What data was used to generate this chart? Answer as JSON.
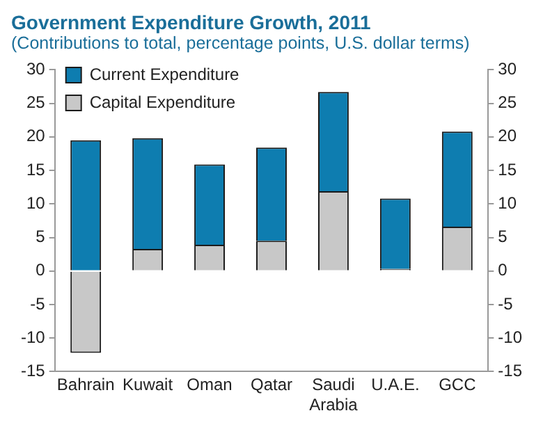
{
  "chart_data": {
    "type": "bar",
    "title": "Government Expenditure Growth, 2011",
    "subtitle": "(Contributions to total, percentage points, U.S. dollar terms)",
    "categories": [
      "Bahrain",
      "Kuwait",
      "Oman",
      "Qatar",
      "Saudi Arabia",
      "U.A.E.",
      "GCC"
    ],
    "stacked": true,
    "series": [
      {
        "name": "Capital Expenditure",
        "color": "#c8c8c8",
        "values": [
          -12.2,
          3.3,
          3.9,
          4.5,
          11.9,
          0.3,
          6.6
        ]
      },
      {
        "name": "Current Expenditure",
        "color": "#0e7db0",
        "values": [
          19.5,
          16.5,
          12.0,
          13.9,
          14.8,
          10.5,
          14.2
        ]
      }
    ],
    "ylim": [
      -15,
      30
    ],
    "yticks": [
      -15,
      -10,
      -5,
      0,
      5,
      10,
      15,
      20,
      25,
      30
    ],
    "y2lim": [
      -15,
      30
    ],
    "y2ticks": [
      -15,
      -10,
      -5,
      0,
      5,
      10,
      15,
      20,
      25,
      30
    ],
    "grid": false,
    "legend": "top left"
  }
}
